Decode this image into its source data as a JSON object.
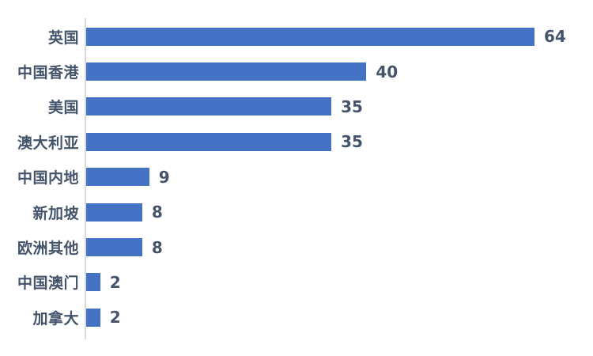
{
  "chart_data": {
    "type": "bar",
    "orientation": "horizontal",
    "title": "",
    "xlabel": "",
    "ylabel": "",
    "categories": [
      "英国",
      "中国香港",
      "美国",
      "澳大利亚",
      "中国内地",
      "新加坡",
      "欧洲其他",
      "中国澳门",
      "加拿大"
    ],
    "values": [
      64,
      40,
      35,
      35,
      9,
      8,
      8,
      2,
      2
    ],
    "value_labels_shown": true,
    "xlim": [
      0,
      72
    ],
    "grid": false,
    "legend": null,
    "colors": {
      "bar": "#4472C4",
      "text": "#44546A",
      "axis_line": "#D9D9D9",
      "background": "#FFFFFF"
    }
  }
}
